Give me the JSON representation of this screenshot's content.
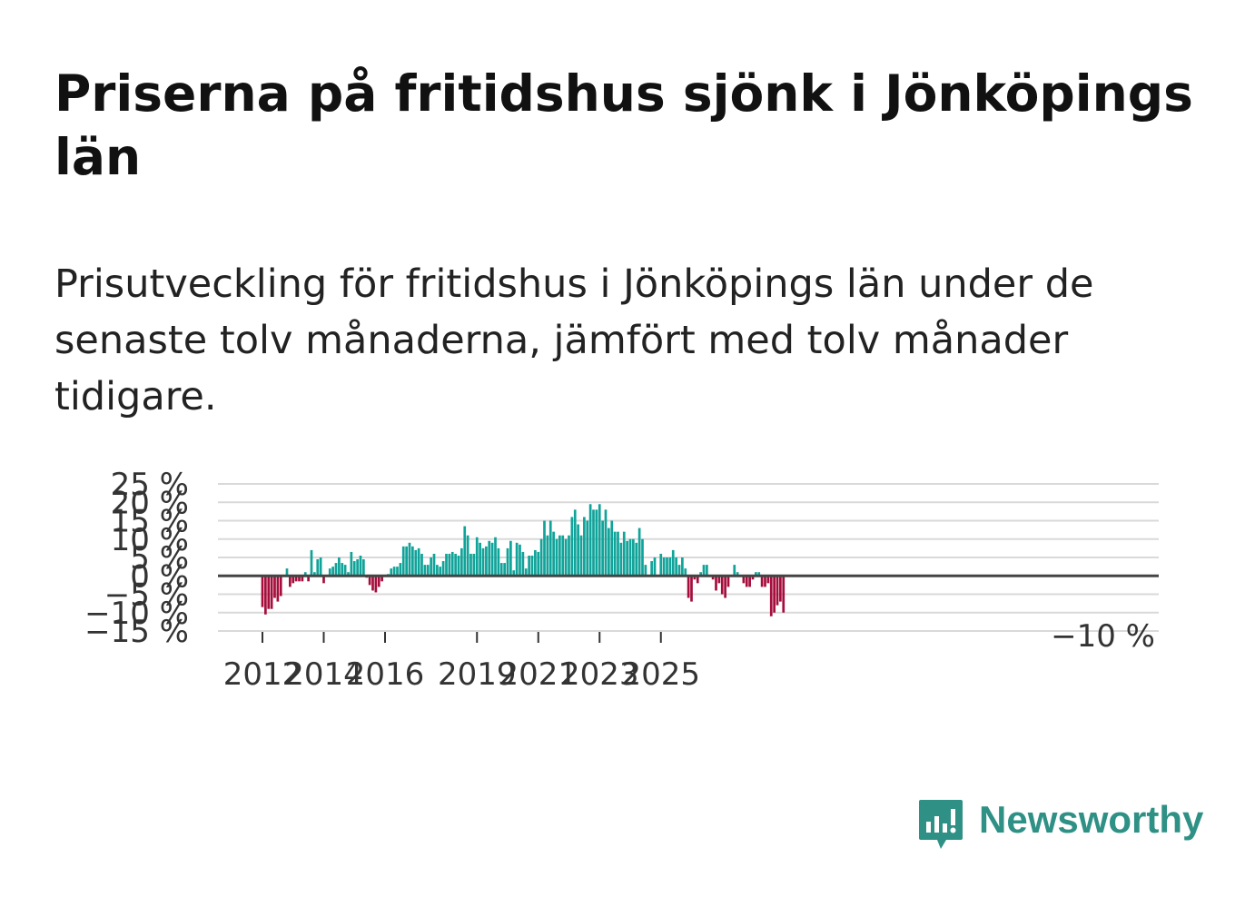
{
  "title": "Priserna på fritidshus sjönk i Jönköpings län",
  "subtitle": "Prisutveckling för fritidshus i Jönköpings län under de senaste tolv månaderna, jämfört med tolv månader tidigare.",
  "brand": {
    "name": "Newsworthy",
    "icon": "newsworthy-logo-icon",
    "color": "#2f9085"
  },
  "chart_data": {
    "type": "bar",
    "title": "",
    "xlabel": "",
    "ylabel": "",
    "ylim": [
      -15,
      25
    ],
    "y_ticks": [
      25,
      20,
      15,
      10,
      5,
      0,
      -5,
      -10,
      -15
    ],
    "y_tick_labels": [
      "25 %",
      "20 %",
      "15 %",
      "10 %",
      "5 %",
      "0 %",
      "−5 %",
      "−10 %",
      "−15 %"
    ],
    "x_ticks": [
      {
        "label": "2012",
        "index": 0
      },
      {
        "label": "2014",
        "index": 20
      },
      {
        "label": "2016",
        "index": 40
      },
      {
        "label": "2019",
        "index": 70
      },
      {
        "label": "2021",
        "index": 90
      },
      {
        "label": "2023",
        "index": 110
      },
      {
        "label": "2025",
        "index": 130
      }
    ],
    "positive_color": "#10a399",
    "negative_color": "#a50e3c",
    "last_value_label": "−10 %",
    "values": [
      -8.5,
      -10.5,
      -9,
      -9,
      -6,
      -7,
      -5.5,
      0,
      2,
      -3,
      -2,
      -1.5,
      -1.5,
      -1.5,
      1,
      -1.5,
      7,
      1,
      4.5,
      5,
      -2,
      0,
      2,
      2.5,
      3.5,
      5,
      3.5,
      3,
      1,
      6.5,
      4,
      4.5,
      5.5,
      4.5,
      -0.5,
      -2.5,
      -4,
      -4.5,
      -3,
      -1.5,
      0,
      0.5,
      2,
      2.5,
      2.5,
      3.5,
      8,
      8,
      9,
      8,
      7,
      7.5,
      6,
      3,
      3,
      5,
      6,
      3,
      2.5,
      4,
      6,
      6,
      6.5,
      6,
      5.5,
      7.5,
      13.5,
      11,
      6,
      6,
      10.5,
      9,
      7.5,
      8,
      9.5,
      9,
      10.5,
      7.5,
      3.5,
      3.5,
      7.5,
      9.5,
      1.5,
      9,
      8.5,
      6.5,
      2,
      5.5,
      5.5,
      7,
      6.5,
      10,
      15,
      11,
      15,
      12,
      10,
      11,
      11,
      10,
      11,
      16,
      18,
      14,
      11,
      16,
      15,
      19.5,
      18,
      18,
      19.5,
      15,
      18,
      13,
      15,
      12,
      12,
      9,
      12,
      9.5,
      10,
      10,
      9,
      13,
      10,
      3,
      0,
      4,
      5,
      0,
      6,
      5,
      5,
      5,
      7,
      5,
      3,
      5,
      2,
      -6,
      -7,
      -1,
      -2,
      1,
      3,
      3,
      0,
      -1,
      -4,
      -2,
      -5,
      -6,
      -3,
      0,
      3,
      1,
      0,
      -2,
      -3,
      -3,
      -1,
      1,
      1,
      -3,
      -3,
      -2,
      -11,
      -10,
      -8,
      -7,
      -10
    ]
  }
}
